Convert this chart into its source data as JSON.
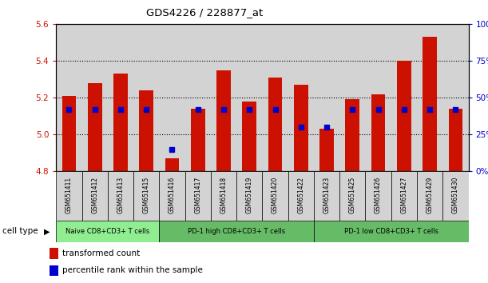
{
  "title": "GDS4226 / 228877_at",
  "samples": [
    "GSM651411",
    "GSM651412",
    "GSM651413",
    "GSM651415",
    "GSM651416",
    "GSM651417",
    "GSM651418",
    "GSM651419",
    "GSM651420",
    "GSM651422",
    "GSM651423",
    "GSM651425",
    "GSM651426",
    "GSM651427",
    "GSM651429",
    "GSM651430"
  ],
  "transformed_count": [
    5.21,
    5.28,
    5.33,
    5.24,
    4.87,
    5.14,
    5.35,
    5.18,
    5.31,
    5.27,
    5.03,
    5.19,
    5.22,
    5.4,
    5.53,
    5.14
  ],
  "percentile_rank": [
    42,
    42,
    42,
    42,
    15,
    42,
    42,
    42,
    42,
    30,
    30,
    42,
    42,
    42,
    42,
    42
  ],
  "ymin": 4.8,
  "ymax": 5.6,
  "yticks": [
    4.8,
    5.0,
    5.2,
    5.4,
    5.6
  ],
  "right_yticks": [
    0,
    25,
    50,
    75,
    100
  ],
  "bar_color": "#CC1100",
  "blue_color": "#0000CC",
  "bar_width": 0.55,
  "background_gray": "#D3D3D3",
  "grid_color": "#000000",
  "left_label_color": "#CC1100",
  "right_label_color": "#0000CC",
  "naive_color": "#90EE90",
  "pd1_high_color": "#66BB66",
  "pd1_low_color": "#66BB66",
  "legend_items": [
    {
      "color": "#CC1100",
      "label": "transformed count"
    },
    {
      "color": "#0000CC",
      "label": "percentile rank within the sample"
    }
  ]
}
